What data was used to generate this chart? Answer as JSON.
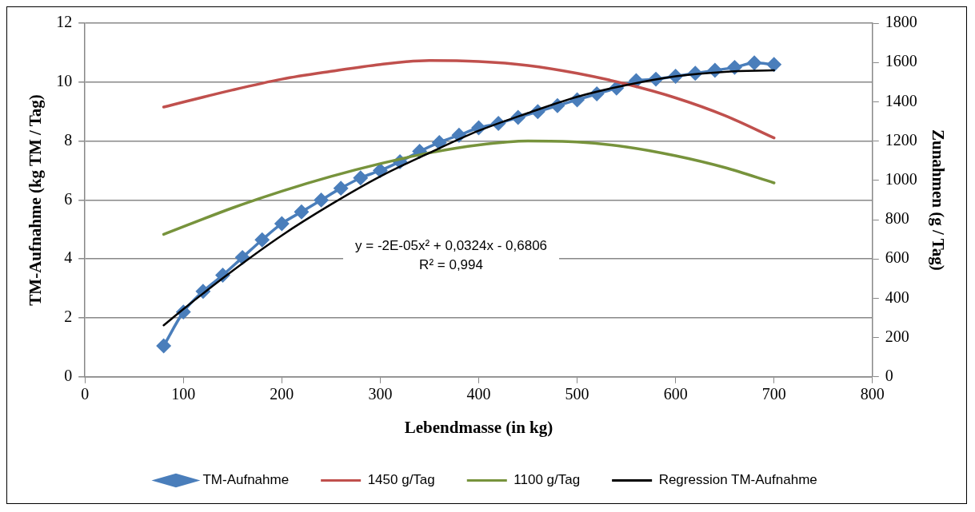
{
  "chart_data": {
    "type": "line",
    "xlabel": "Lebendmasse (in kg)",
    "ylabel": "TM-Aufnahme (kg TM / Tag)",
    "y2label": "Zunahmen (g / Tag)",
    "xlim": [
      0,
      800
    ],
    "xticks": [
      0,
      100,
      200,
      300,
      400,
      500,
      600,
      700,
      800
    ],
    "ylim": [
      0,
      12
    ],
    "yticks": [
      0,
      2,
      4,
      6,
      8,
      10,
      12
    ],
    "y2lim": [
      0,
      1800
    ],
    "y2ticks": [
      0,
      200,
      400,
      600,
      800,
      1000,
      1200,
      1400,
      1600,
      1800
    ],
    "grid": "y",
    "legend": "bottom",
    "annotations": [
      "y = -2E-05x² + 0,0324x - 0,6806",
      "R² = 0,994"
    ],
    "series": [
      {
        "name": "TM-Aufnahme",
        "color": "#4a7ebb",
        "marker": "diamond",
        "x": [
          80,
          100,
          120,
          140,
          160,
          180,
          200,
          220,
          240,
          260,
          280,
          300,
          320,
          340,
          360,
          380,
          400,
          420,
          440,
          460,
          480,
          500,
          520,
          540,
          560,
          580,
          600,
          620,
          640,
          660,
          680,
          700
        ],
        "values": [
          1.05,
          2.2,
          2.9,
          3.45,
          4.05,
          4.65,
          5.2,
          5.6,
          6.0,
          6.4,
          6.75,
          7.0,
          7.3,
          7.65,
          7.95,
          8.2,
          8.45,
          8.6,
          8.8,
          9.0,
          9.2,
          9.4,
          9.6,
          9.8,
          10.05,
          10.1,
          10.2,
          10.3,
          10.4,
          10.5,
          10.65,
          10.6
        ]
      },
      {
        "name": "1450 g/Tag",
        "color": "#c0504d",
        "axis": "y2",
        "x": [
          80,
          150,
          200,
          250,
          300,
          350,
          400,
          450,
          500,
          550,
          600,
          650,
          700
        ],
        "values": [
          1373,
          1460,
          1515,
          1555,
          1590,
          1610,
          1605,
          1585,
          1545,
          1490,
          1420,
          1330,
          1216
        ]
      },
      {
        "name": "1100 g/Tag",
        "color": "#77933c",
        "axis": "y2",
        "x": [
          80,
          150,
          200,
          250,
          300,
          350,
          400,
          450,
          500,
          550,
          600,
          650,
          700
        ],
        "values": [
          725,
          860,
          945,
          1020,
          1085,
          1140,
          1180,
          1200,
          1195,
          1170,
          1125,
          1065,
          987
        ]
      },
      {
        "name": "Regression TM-Aufnahme",
        "color": "#000000",
        "x": [
          80,
          100,
          150,
          200,
          250,
          300,
          350,
          400,
          450,
          500,
          550,
          600,
          650,
          700
        ],
        "values": [
          1.75,
          2.3,
          3.6,
          4.8,
          5.85,
          6.8,
          7.6,
          8.35,
          8.95,
          9.5,
          9.9,
          10.2,
          10.35,
          10.4
        ]
      }
    ]
  }
}
